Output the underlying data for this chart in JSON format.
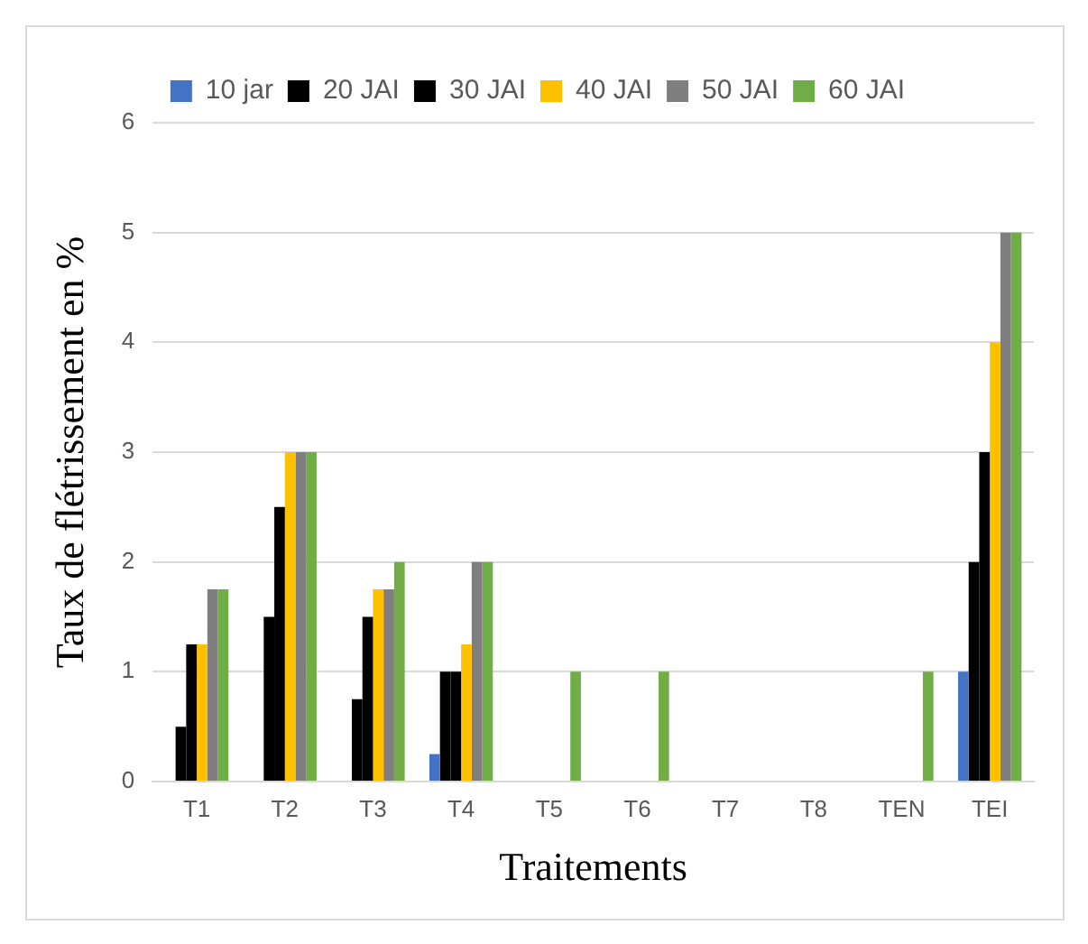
{
  "chart_data": {
    "type": "bar",
    "xlabel": "Traitements",
    "ylabel": "Taux de flétrissement en %",
    "categories": [
      "T1",
      "T2",
      "T3",
      "T4",
      "T5",
      "T6",
      "T7",
      "T8",
      "TEN",
      "TEI"
    ],
    "series": [
      {
        "name": "10 jar",
        "color": "#4472c4",
        "values": [
          0,
          0,
          0,
          0.25,
          0,
          0,
          0,
          0,
          0,
          1
        ]
      },
      {
        "name": "20 JAI",
        "color": "#000000",
        "values": [
          0.5,
          1.5,
          0.75,
          1,
          0,
          0,
          0,
          0,
          0,
          2
        ]
      },
      {
        "name": "30 JAI",
        "color": "#000000",
        "values": [
          1.25,
          2.5,
          1.5,
          1,
          0,
          0,
          0,
          0,
          0,
          3
        ]
      },
      {
        "name": "40 JAI",
        "color": "#ffc000",
        "values": [
          1.25,
          3,
          1.75,
          1.25,
          0,
          0,
          0,
          0,
          0,
          4
        ]
      },
      {
        "name": "50 JAI",
        "color": "#7f7f7f",
        "values": [
          1.75,
          3,
          1.75,
          2,
          0,
          0,
          0,
          0,
          0,
          5
        ]
      },
      {
        "name": "60 JAI",
        "color": "#70ad47",
        "values": [
          1.75,
          3,
          2,
          2,
          1,
          1,
          0,
          0,
          1,
          5
        ]
      }
    ],
    "ylim": [
      0,
      6
    ],
    "yticks": [
      0,
      1,
      2,
      3,
      4,
      5,
      6
    ],
    "grid": "y",
    "legend": "top"
  }
}
